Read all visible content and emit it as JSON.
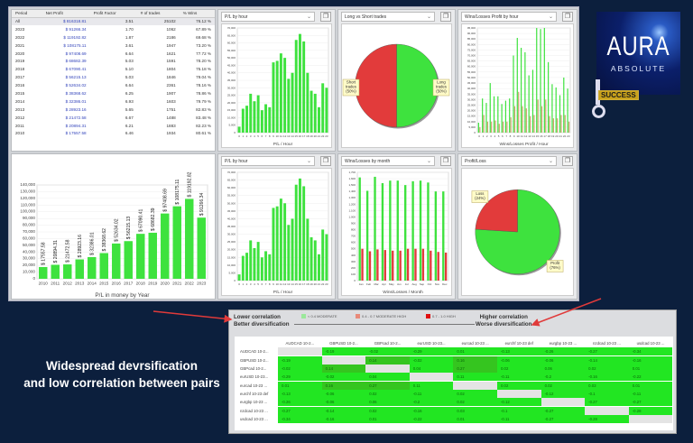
{
  "colors": {
    "win": "#3ee23e",
    "loss": "#e23b3b",
    "loss_hour": "#c8a26a",
    "corr_low": "#22e622",
    "corr_low_dark": "#35c51f",
    "corr_mod_high": "#e88a7a",
    "corr_high": "#e01010"
  },
  "stats_table": {
    "headers": [
      "Period",
      "Net Profit",
      "Profit Factor",
      "# of trades",
      "% Wins"
    ],
    "rows": [
      [
        "All",
        "$ 816318.81",
        "3.51",
        "25102",
        "76.12 %"
      ],
      [
        "2023",
        "$ 91266.34",
        "1.70",
        "1062",
        "67.89 %"
      ],
      [
        "2022",
        "$ 119192.82",
        "1.87",
        "2186",
        "69.68 %"
      ],
      [
        "2021",
        "$ 108175.11",
        "3.61",
        "1947",
        "73.20 %"
      ],
      [
        "2020",
        "$ 97408.69",
        "6.64",
        "1621",
        "77.72 %"
      ],
      [
        "2019",
        "$ 68682.39",
        "5.03",
        "1591",
        "78.20 %"
      ],
      [
        "2018",
        "$ 67090.41",
        "5.10",
        "1804",
        "75.18 %"
      ],
      [
        "2017",
        "$ 56215.13",
        "5.03",
        "1846",
        "79.04 %"
      ],
      [
        "2016",
        "$ 52634.02",
        "6.64",
        "2361",
        "78.16 %"
      ],
      [
        "2015",
        "$ 38368.62",
        "6.25",
        "1907",
        "78.86 %"
      ],
      [
        "2014",
        "$ 32386.01",
        "6.93",
        "1603",
        "79.79 %"
      ],
      [
        "2013",
        "$ 28923.16",
        "5.65",
        "1751",
        "82.83 %"
      ],
      [
        "2012",
        "$ 21472.58",
        "6.67",
        "1488",
        "83.48 %"
      ],
      [
        "2011",
        "$ 20894.31",
        "6.21",
        "1883",
        "82.23 %"
      ],
      [
        "2010",
        "$ 17557.58",
        "6.46",
        "1934",
        "80.61 %"
      ]
    ]
  },
  "chart_data": [
    {
      "id": "year",
      "type": "bar",
      "title": "",
      "xlabel": "P/L in money by Year",
      "ylim": [
        0,
        140000
      ],
      "ystep": 10000,
      "categories": [
        "2010",
        "2011",
        "2012",
        "2013",
        "2014",
        "2015",
        "2016",
        "2017",
        "2018",
        "2019",
        "2020",
        "2021",
        "2022",
        "2023"
      ],
      "series": [
        {
          "values": [
            17557.58,
            20894.31,
            21472.58,
            28923.16,
            32386.01,
            38368.62,
            52634.02,
            56215.13,
            67090.41,
            68682.39,
            97408.69,
            108175.11,
            119192.82,
            91266.34
          ]
        }
      ],
      "data_labels": [
        "$ 17557.58",
        "$ 20894.31",
        "$ 21472.58",
        "$ 28923.16",
        "$ 32386.01",
        "$ 38368.62",
        "$ 52634.02",
        "$ 56215.13",
        "$ 67090.41",
        "$ 68682.39",
        "$ 97408.69",
        "$ 108175.11",
        "$ 119192.82",
        "$ 91266.34"
      ]
    },
    {
      "id": "plhour1",
      "type": "bar",
      "title": "P/L by hour",
      "xlabel": "P/L / Hour",
      "ylim": [
        0,
        70000
      ],
      "ystep": 5000,
      "categories": [
        "0",
        "1",
        "2",
        "3",
        "4",
        "5",
        "6",
        "7",
        "8",
        "9",
        "10",
        "11",
        "12",
        "13",
        "14",
        "15",
        "16",
        "17",
        "18",
        "19",
        "20",
        "21",
        "22",
        "23"
      ],
      "series": [
        {
          "values": [
            4000,
            16000,
            18000,
            26000,
            21000,
            25000,
            15000,
            19000,
            17000,
            47000,
            48000,
            53000,
            50000,
            36000,
            40000,
            62000,
            66000,
            61000,
            40000,
            28000,
            26000,
            17000,
            33000,
            30000
          ]
        }
      ]
    },
    {
      "id": "longshort",
      "type": "pie",
      "title": "Long vs Short trades",
      "slices": [
        {
          "label": "Long trades (50%)",
          "value": 50,
          "color": "#3ee23e"
        },
        {
          "label": "Short trades (50%)",
          "value": 50,
          "color": "#e23b3b"
        }
      ]
    },
    {
      "id": "wlhour",
      "type": "bar",
      "title": "Wins/Losses Profit by hour",
      "xlabel": "Wins/Losses Profit / Hour",
      "ylim": [
        0,
        95000
      ],
      "ystep": 5000,
      "categories": [
        "0",
        "1",
        "2",
        "3",
        "4",
        "5",
        "6",
        "7",
        "8",
        "9",
        "10",
        "11",
        "12",
        "13",
        "14",
        "15",
        "16",
        "17",
        "18",
        "19",
        "20",
        "21",
        "22",
        "23"
      ],
      "series": [
        {
          "values": [
            9000,
            31000,
            27000,
            45000,
            33000,
            33000,
            26000,
            29000,
            31000,
            70000,
            86000,
            77000,
            73000,
            52000,
            57000,
            95000,
            94000,
            95000,
            64000,
            44000,
            41000,
            34000,
            50000,
            40000
          ]
        },
        {
          "values": [
            5000,
            16000,
            10000,
            10000,
            11000,
            8000,
            10000,
            10000,
            14000,
            24000,
            37000,
            24000,
            22000,
            15000,
            16000,
            30000,
            24000,
            30000,
            15000,
            13000,
            13000,
            16000,
            16000,
            10000
          ]
        }
      ]
    },
    {
      "id": "plhour2",
      "type": "bar",
      "title": "P/L by hour",
      "xlabel": "P/L / Hour",
      "ylim": [
        0,
        70000
      ],
      "ystep": 5000,
      "categories": [
        "0",
        "1",
        "2",
        "3",
        "4",
        "5",
        "6",
        "7",
        "8",
        "9",
        "10",
        "11",
        "12",
        "13",
        "14",
        "15",
        "16",
        "17",
        "18",
        "19",
        "20",
        "21",
        "22",
        "23"
      ],
      "series": [
        {
          "values": [
            4000,
            16000,
            18000,
            26000,
            21000,
            25000,
            15000,
            19000,
            17000,
            47000,
            48000,
            53000,
            50000,
            36000,
            40000,
            62000,
            66000,
            61000,
            40000,
            28000,
            26000,
            17000,
            33000,
            30000
          ]
        }
      ]
    },
    {
      "id": "wlmonth",
      "type": "bar",
      "title": "Wins/Losses by month",
      "xlabel": "Wins/Losses / Month",
      "ylim": [
        0,
        1700
      ],
      "ystep": 100,
      "categories": [
        "Jan",
        "Feb",
        "Mar",
        "Apr",
        "May",
        "Jun",
        "Jul",
        "Aug",
        "Sep",
        "Oct",
        "Nov",
        "Dec"
      ],
      "series": [
        {
          "values": [
            1620,
            1410,
            1630,
            1530,
            1570,
            1570,
            1500,
            1560,
            1570,
            1540,
            1400,
            1400
          ]
        },
        {
          "values": [
            500,
            460,
            490,
            480,
            470,
            470,
            500,
            500,
            500,
            470,
            450,
            440
          ]
        }
      ]
    },
    {
      "id": "profitloss",
      "type": "pie",
      "title": "Profit/Loss",
      "slices": [
        {
          "label": "Profit (76%)",
          "value": 76,
          "color": "#3ee23e"
        },
        {
          "label": "Loss (24%)",
          "value": 24,
          "color": "#e23b3b"
        }
      ]
    }
  ],
  "logo": {
    "text": "AURA",
    "subtext": "ABSOLUTE",
    "badge": "SUCCESS"
  },
  "caption": {
    "line1": "Widespread devrsification",
    "line2": "and low correlation between pairs"
  },
  "correlation": {
    "low_label_1": "Lower correlation",
    "low_label_2": "Better diversification",
    "high_label_1": "Higher correlation",
    "high_label_2": "Worse diversification",
    "legend": [
      "< 0.4 MODERATE",
      "0.4 - 0.7 MODERATE HIGH",
      "0.7 - 1.0 HIGH"
    ],
    "columns": [
      "AUDCAD 10-2...",
      "GBPUSD 10-2...",
      "GBPcad 10-2...",
      "eurUSD 10-23...",
      "eurcad 10-23 ...",
      "eurchf 10-23 def",
      "eurgbp 10-23 ...",
      "nzdcad 10-23 ...",
      "usdcad 10-23 ..."
    ],
    "rows": [
      {
        "label": "AUDCAD 10-2...",
        "values": [
          "",
          "-0.19",
          "-0.02",
          "-0.29",
          "0.01",
          "-0.13",
          "-0.26",
          "-0.27",
          "-0.34"
        ]
      },
      {
        "label": "GBPUSD 10-2...",
        "values": [
          "-0.19",
          "",
          "0.14",
          "-0.02",
          "0.16",
          "-0.06",
          "-0.06",
          "-0.14",
          "-0.16"
        ]
      },
      {
        "label": "GBPcad 10-2...",
        "values": [
          "-0.02",
          "0.14",
          "",
          "0.04",
          "0.27",
          "0.02",
          "0.06",
          "0.02",
          "0.01"
        ]
      },
      {
        "label": "eurUSD 10-23...",
        "values": [
          "-0.29",
          "-0.02",
          "0.04",
          "",
          "0.11",
          "-0.11",
          "-0.2",
          "-0.16",
          "-0.22"
        ]
      },
      {
        "label": "eurcad 10-23 ...",
        "values": [
          "0.01",
          "0.16",
          "0.27",
          "0.11",
          "",
          "0.02",
          "0.02",
          "0.03",
          "0.01"
        ]
      },
      {
        "label": "eurchf 10-23 def",
        "values": [
          "-0.13",
          "-0.06",
          "0.02",
          "-0.11",
          "0.02",
          "",
          "-0.12",
          "-0.1",
          "-0.11"
        ]
      },
      {
        "label": "eurgbp 10-23 ...",
        "values": [
          "-0.26",
          "-0.06",
          "0.06",
          "-0.2",
          "0.02",
          "-0.12",
          "",
          "-0.27",
          "-0.27"
        ]
      },
      {
        "label": "nzdcad 10-23 ...",
        "values": [
          "-0.27",
          "-0.14",
          "0.02",
          "-0.16",
          "0.03",
          "-0.1",
          "-0.27",
          "",
          "-0.28"
        ]
      },
      {
        "label": "usdcad 10-23 ...",
        "values": [
          "-0.34",
          "-0.16",
          "0.01",
          "-0.22",
          "0.01",
          "-0.11",
          "-0.27",
          "-0.28",
          ""
        ]
      }
    ]
  }
}
